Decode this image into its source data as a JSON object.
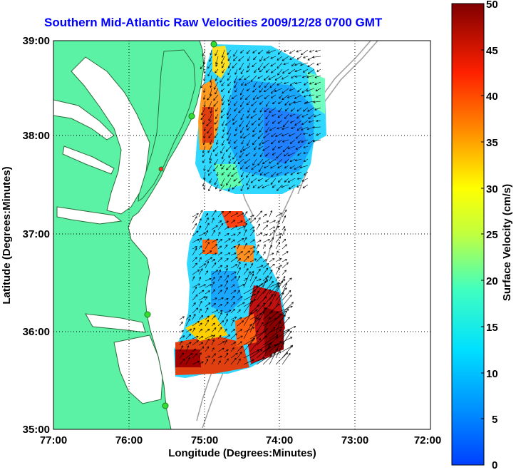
{
  "title": "Southern Mid-Atlantic Raw Velocities 2009/12/28 0700 GMT",
  "map": {
    "xlabel": "Longitude (Degrees:Minutes)",
    "ylabel": "Latitude (Degrees:Minutes)",
    "lon_ticks": [
      "77:00",
      "76:00",
      "75:00",
      "74:00",
      "73:00",
      "72:00"
    ],
    "lat_ticks": [
      "39:00",
      "38:00",
      "37:00",
      "36:00",
      "35:00"
    ],
    "land_color": "#5cf2a6",
    "grid": "dotted"
  },
  "colorbar": {
    "label": "Surface Velocity (cm/s)",
    "ticks": [
      "50",
      "45",
      "40",
      "35",
      "30",
      "25",
      "20",
      "15",
      "10",
      "5",
      "0"
    ],
    "min": 0,
    "max": 50,
    "colormap": "jet"
  }
}
